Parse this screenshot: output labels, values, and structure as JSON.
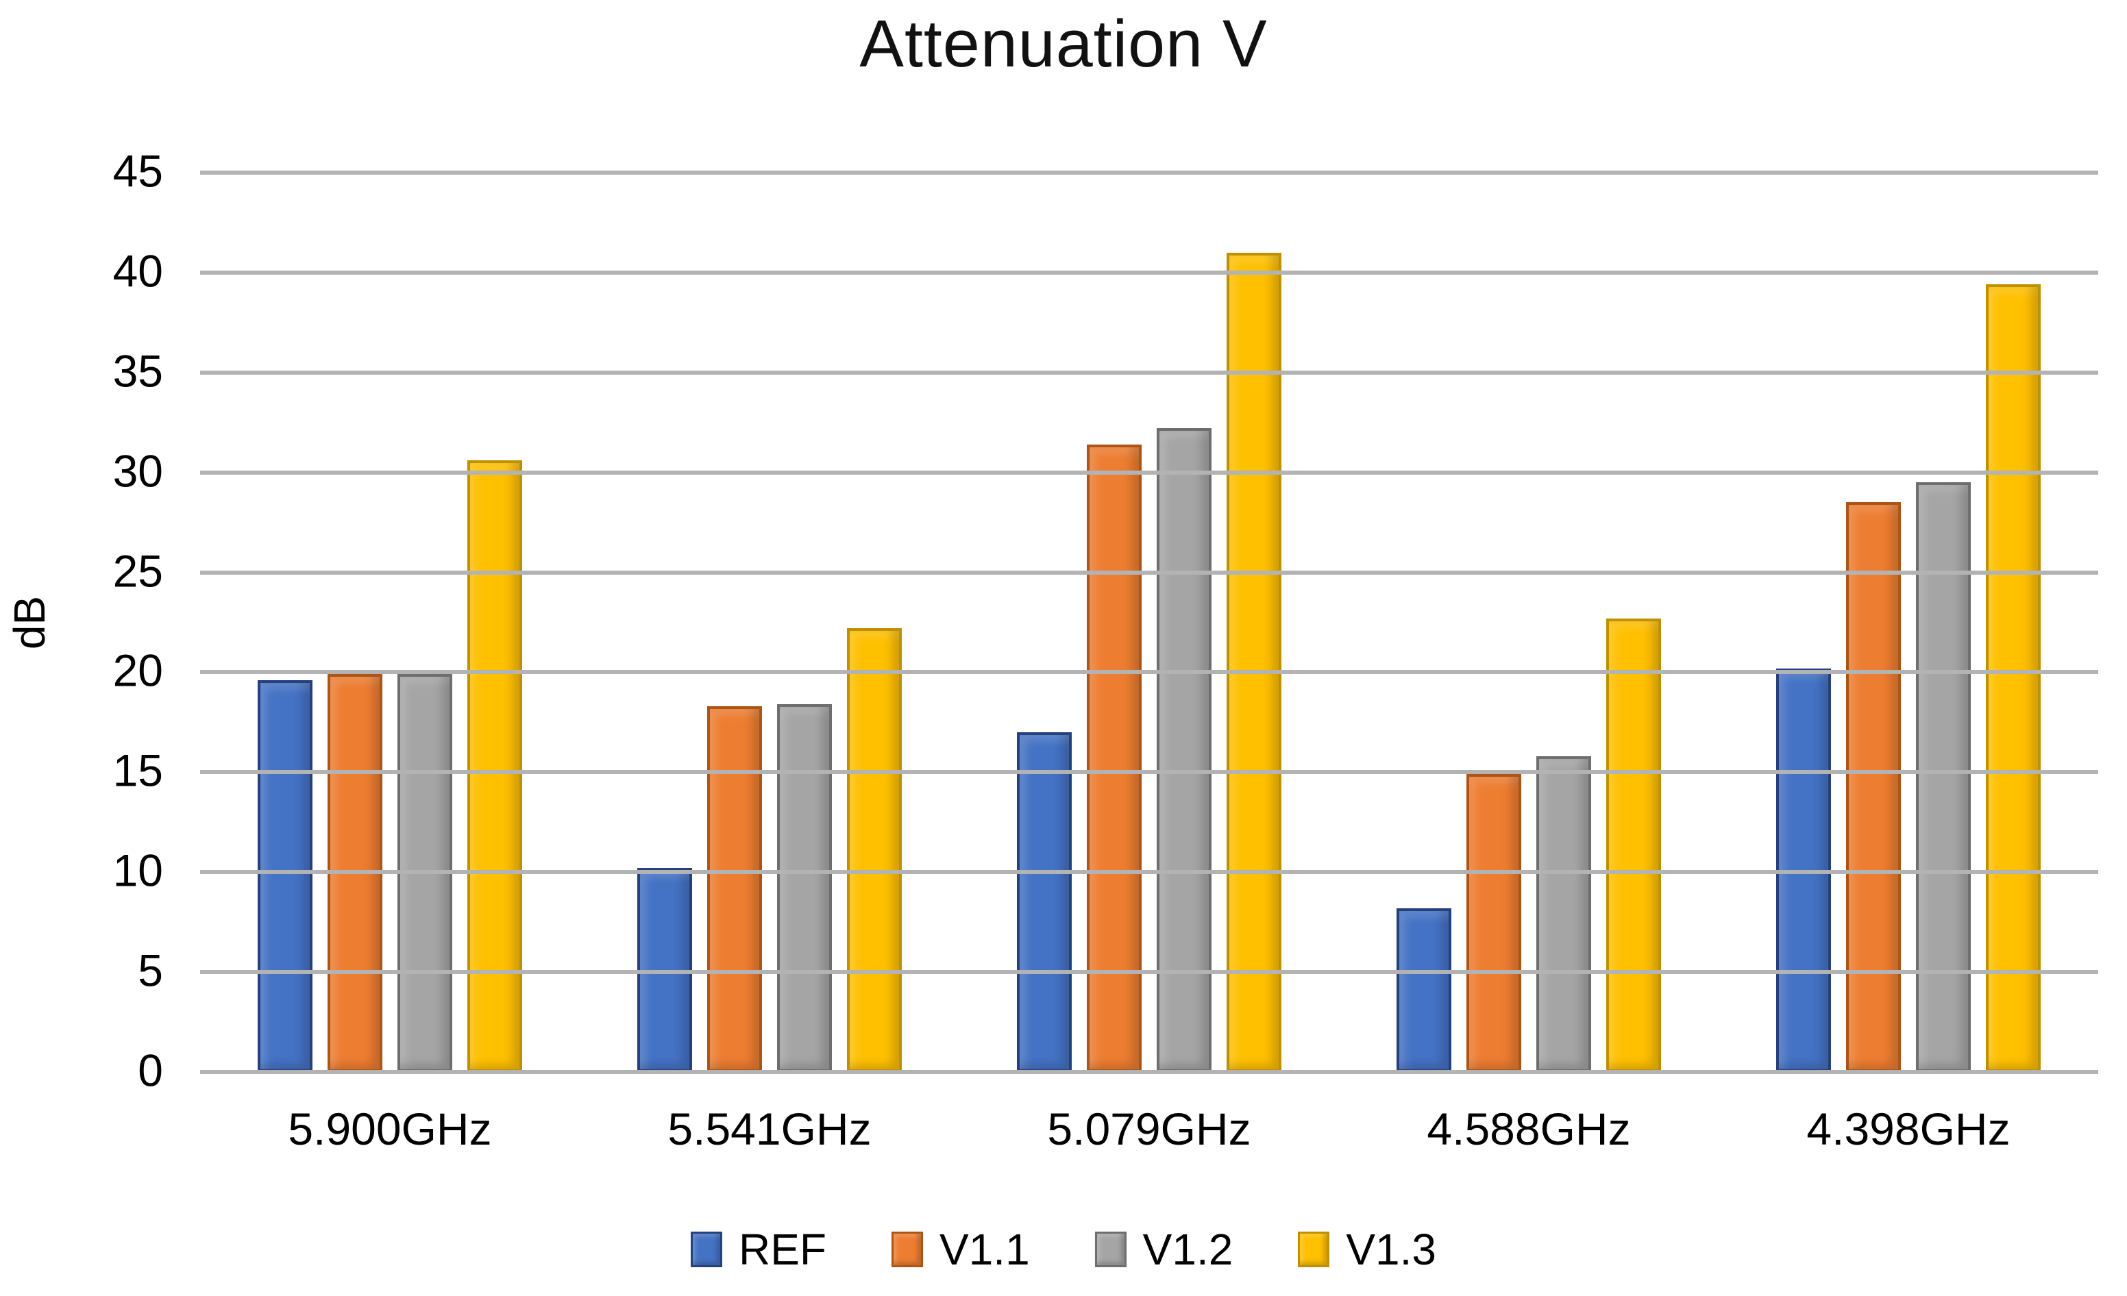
{
  "title": "Attenuation V",
  "chart_data": {
    "type": "bar",
    "title": "Attenuation V",
    "xlabel": "",
    "ylabel": "dB",
    "ylim": [
      0,
      45
    ],
    "ytick_step": 5,
    "grid": true,
    "legend_position": "bottom",
    "background_color": "#ffffff",
    "gridline_color": "#b3b3b3",
    "categories": [
      "5.900GHz",
      "5.541GHz",
      "5.079GHz",
      "4.588GHz",
      "4.398GHz"
    ],
    "series": [
      {
        "name": "REF",
        "color": "#4472C4",
        "border_color": "#24407E",
        "values": [
          19.6,
          10.2,
          17.0,
          8.2,
          20.2
        ]
      },
      {
        "name": "V1.1",
        "color": "#ED7D31",
        "border_color": "#AE5414",
        "values": [
          19.9,
          18.3,
          31.4,
          14.9,
          28.5
        ]
      },
      {
        "name": "V1.2",
        "color": "#A5A5A5",
        "border_color": "#6E6E6E",
        "values": [
          19.9,
          18.4,
          32.2,
          15.8,
          29.5
        ]
      },
      {
        "name": "V1.3",
        "color": "#FFC000",
        "border_color": "#BF9000",
        "values": [
          30.6,
          22.2,
          41.0,
          22.7,
          39.4
        ]
      }
    ]
  }
}
